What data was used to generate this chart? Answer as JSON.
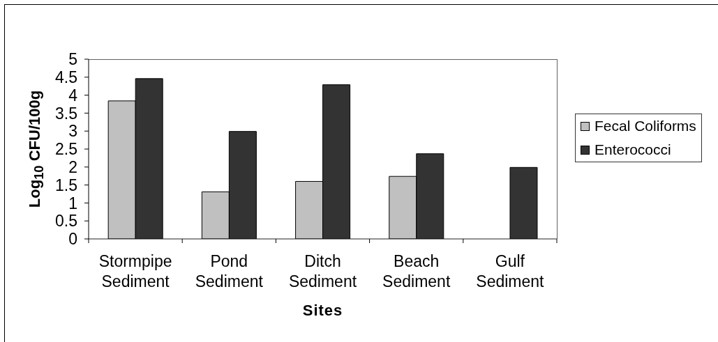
{
  "chart_data": {
    "type": "bar",
    "categories": [
      "Stormpipe Sediment",
      "Pond Sediment",
      "Ditch Sediment",
      "Beach Sediment",
      "Gulf Sediment"
    ],
    "series": [
      {
        "name": "Fecal Coliforms",
        "color": "#c0c0c0",
        "values": [
          3.84,
          1.31,
          1.6,
          1.74,
          null
        ]
      },
      {
        "name": "Enterococci",
        "color": "#333333",
        "values": [
          4.46,
          2.99,
          4.29,
          2.37,
          1.99
        ]
      }
    ],
    "xlabel": "Sites",
    "ylabel": "Log$_{10}$ CFU/100g",
    "ylim": [
      0,
      5
    ],
    "yticks": [
      0,
      0.5,
      1,
      1.5,
      2,
      2.5,
      3,
      3.5,
      4,
      4.5,
      5
    ],
    "grid": false,
    "legend": "right"
  }
}
